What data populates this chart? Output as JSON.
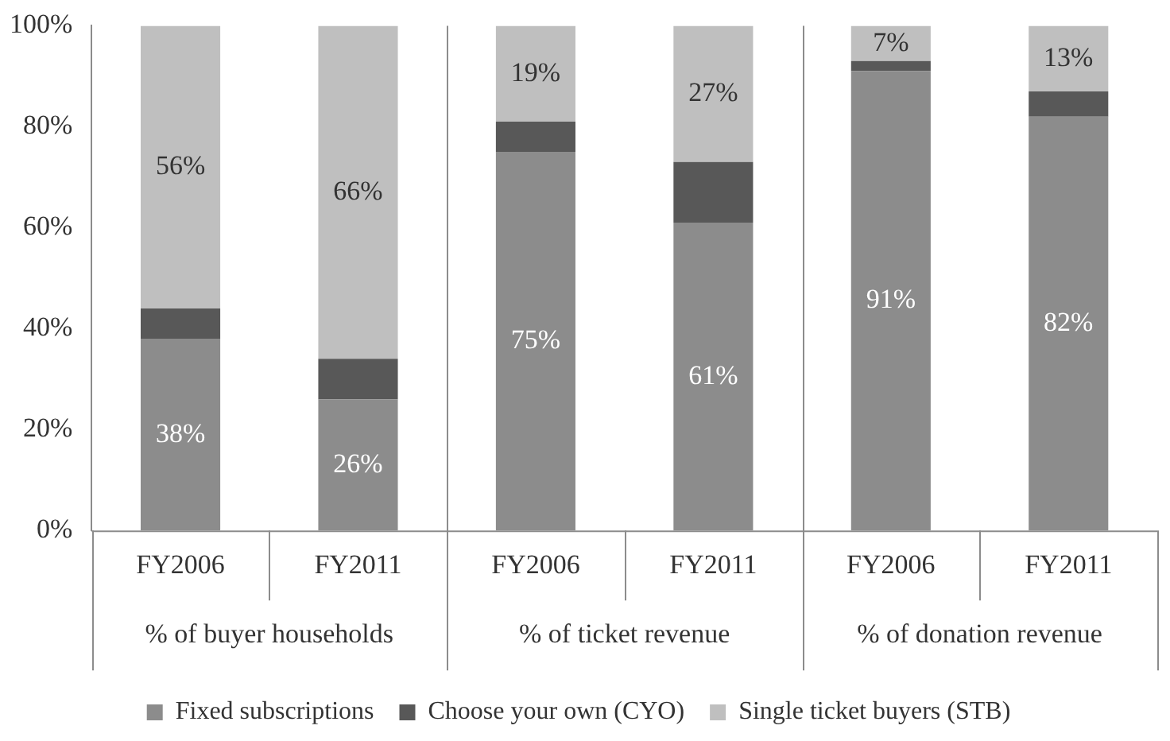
{
  "chart_data": {
    "type": "bar",
    "stacked": true,
    "categories": [
      "FY2006",
      "FY2011",
      "FY2006",
      "FY2011",
      "FY2006",
      "FY2011"
    ],
    "annotations": [
      "% of buyer households",
      "% of ticket revenue",
      "% of donation revenue"
    ],
    "series": [
      {
        "name": "Fixed subscriptions",
        "color": "#8c8c8c",
        "values": [
          38,
          26,
          75,
          61,
          91,
          82
        ],
        "value_labels": [
          "38%",
          "26%",
          "75%",
          "61%",
          "91%",
          "82%"
        ]
      },
      {
        "name": "Choose your own (CYO)",
        "color": "#585858",
        "values": [
          6,
          8,
          6,
          12,
          2,
          5
        ],
        "value_labels": [
          null,
          null,
          null,
          null,
          null,
          null
        ]
      },
      {
        "name": "Single ticket buyers (STB)",
        "color": "#bfbfbf",
        "values": [
          56,
          66,
          19,
          27,
          7,
          13
        ],
        "value_labels": [
          "56%",
          "66%",
          "19%",
          "27%",
          "7%",
          "13%"
        ]
      }
    ],
    "ylim": [
      0,
      100
    ],
    "yticks": [
      {
        "value": 0,
        "label": "0%"
      },
      {
        "value": 20,
        "label": "20%"
      },
      {
        "value": 40,
        "label": "40%"
      },
      {
        "value": 60,
        "label": "60%"
      },
      {
        "value": 80,
        "label": "80%"
      },
      {
        "value": 100,
        "label": "100%"
      }
    ],
    "grid": false,
    "legend": "bottom",
    "marker": "square"
  }
}
